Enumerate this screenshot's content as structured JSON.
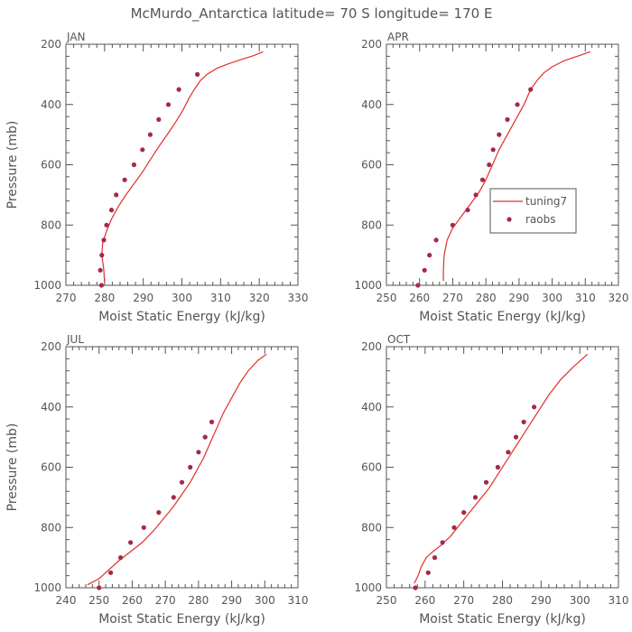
{
  "figure": {
    "title": "McMurdo_Antarctica   latitude=  70 S  longitude=  170 E"
  },
  "colors": {
    "model": "#e0302a",
    "obs": "#a3294a",
    "axis": "#555555"
  },
  "legend": {
    "model": "tuning7",
    "obs": "raobs",
    "panel": 1,
    "placement": "right-middle"
  },
  "chart_data": [
    {
      "type": "line",
      "title": "JAN",
      "xlabel": "Moist Static Energy (kJ/kg)",
      "ylabel": "Pressure (mb)",
      "xlim": [
        270,
        330
      ],
      "xticks": [
        270,
        280,
        290,
        300,
        310,
        320,
        330
      ],
      "ylim": [
        1000,
        200
      ],
      "yticks": [
        200,
        400,
        600,
        800,
        1000
      ],
      "series": [
        {
          "name": "tuning7",
          "kind": "line",
          "x": [
            280,
            279.8,
            279.3,
            279.5,
            280.5,
            281.8,
            283.5,
            285.5,
            287.8,
            290,
            292,
            294,
            296.2,
            298.3,
            300.2,
            301.8,
            303.2,
            304.8,
            306.5,
            309,
            312,
            315.5,
            318.5,
            321
          ],
          "y": [
            990,
            950,
            900,
            860,
            820,
            780,
            740,
            700,
            660,
            620,
            580,
            540,
            500,
            460,
            420,
            380,
            350,
            320,
            300,
            280,
            265,
            250,
            238,
            225
          ]
        },
        {
          "name": "raobs",
          "kind": "scatter",
          "x": [
            279.2,
            278.9,
            279.3,
            279.8,
            280.5,
            281.8,
            283,
            285.2,
            287.6,
            289.8,
            291.8,
            294,
            296.5,
            299.2,
            304
          ],
          "y": [
            1000,
            950,
            900,
            850,
            800,
            750,
            700,
            650,
            600,
            550,
            500,
            450,
            400,
            350,
            300
          ]
        }
      ]
    },
    {
      "type": "line",
      "title": "APR",
      "xlabel": "Moist Static Energy (kJ/kg)",
      "ylabel": "",
      "xlim": [
        250,
        320
      ],
      "xticks": [
        250,
        260,
        270,
        280,
        290,
        300,
        310,
        320
      ],
      "ylim": [
        1000,
        200
      ],
      "yticks": [
        200,
        400,
        600,
        800,
        1000
      ],
      "series": [
        {
          "name": "tuning7",
          "kind": "line",
          "x": [
            267.2,
            267.2,
            267.4,
            268.3,
            270,
            272,
            274,
            276,
            278,
            280,
            282,
            284,
            286.5,
            289,
            291.5,
            293.5,
            295.5,
            297.5,
            300,
            303.5,
            307.5,
            311.5
          ],
          "y": [
            985,
            950,
            900,
            850,
            810,
            780,
            750,
            720,
            690,
            650,
            600,
            550,
            500,
            450,
            400,
            350,
            320,
            295,
            275,
            255,
            240,
            225
          ]
        },
        {
          "name": "raobs",
          "kind": "scatter",
          "x": [
            259.5,
            261.5,
            263,
            265,
            270,
            274.5,
            277,
            279,
            281,
            282.2,
            284,
            286.5,
            289.5,
            293.5
          ],
          "y": [
            1000,
            950,
            900,
            850,
            800,
            750,
            700,
            650,
            600,
            550,
            500,
            450,
            400,
            350
          ]
        }
      ]
    },
    {
      "type": "line",
      "title": "JUL",
      "xlabel": "Moist Static Energy (kJ/kg)",
      "ylabel": "Pressure (mb)",
      "xlim": [
        240,
        310
      ],
      "xticks": [
        240,
        250,
        260,
        270,
        280,
        290,
        300,
        310
      ],
      "ylim": [
        1000,
        200
      ],
      "yticks": [
        200,
        400,
        600,
        800,
        1000
      ],
      "series": [
        {
          "name": "tuning7",
          "kind": "line",
          "x": [
            246.5,
            250,
            253,
            256,
            259.5,
            263,
            266.5,
            269.5,
            272.5,
            275,
            277.5,
            279.5,
            281.5,
            283.5,
            285.5,
            287.5,
            290,
            292.5,
            295,
            298,
            300.5
          ],
          "y": [
            990,
            970,
            940,
            910,
            880,
            850,
            810,
            770,
            730,
            690,
            650,
            610,
            570,
            520,
            470,
            420,
            370,
            320,
            280,
            245,
            225
          ]
        },
        {
          "name": "raobs",
          "kind": "scatter",
          "x": [
            250,
            253.5,
            256.5,
            259.5,
            263.5,
            268,
            272.5,
            275,
            277.5,
            280,
            282,
            284
          ],
          "y": [
            1000,
            950,
            900,
            850,
            800,
            750,
            700,
            650,
            600,
            550,
            500,
            450
          ]
        }
      ]
    },
    {
      "type": "line",
      "title": "OCT",
      "xlabel": "Moist Static Energy (kJ/kg)",
      "ylabel": "",
      "xlim": [
        250,
        310
      ],
      "xticks": [
        250,
        260,
        270,
        280,
        290,
        300,
        310
      ],
      "ylim": [
        1000,
        200
      ],
      "yticks": [
        200,
        400,
        600,
        800,
        1000
      ],
      "series": [
        {
          "name": "tuning7",
          "kind": "line",
          "x": [
            257.2,
            258.2,
            259,
            260.3,
            262,
            264,
            266.5,
            269,
            271.5,
            274,
            276.5,
            279,
            281.5,
            284,
            286.5,
            289,
            292,
            295,
            298.5,
            302
          ],
          "y": [
            985,
            960,
            930,
            900,
            880,
            860,
            830,
            790,
            750,
            710,
            670,
            620,
            570,
            520,
            470,
            420,
            360,
            310,
            265,
            225
          ]
        },
        {
          "name": "raobs",
          "kind": "scatter",
          "x": [
            257.5,
            260.8,
            262.5,
            264.5,
            267.5,
            270,
            273,
            275.8,
            278.8,
            281.5,
            283.5,
            285.5,
            288.2
          ],
          "y": [
            1000,
            950,
            900,
            850,
            800,
            750,
            700,
            650,
            600,
            550,
            500,
            450,
            400
          ]
        }
      ]
    }
  ]
}
